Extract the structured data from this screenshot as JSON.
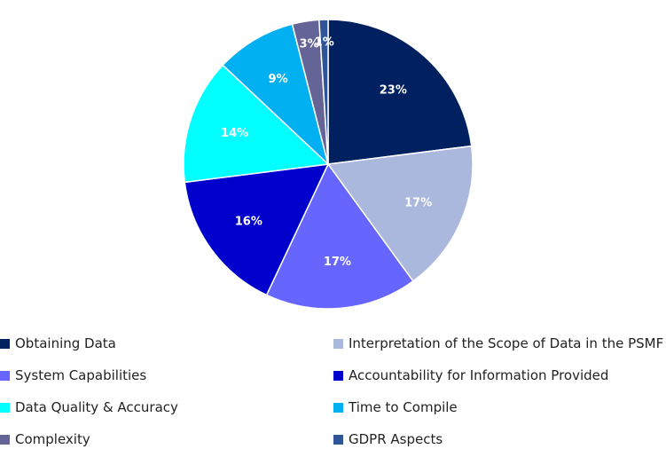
{
  "chart_data": {
    "type": "pie",
    "legend_position": "bottom",
    "slices": [
      {
        "label": "Obtaining Data",
        "value": 23,
        "value_label": "23%",
        "color": "#002060"
      },
      {
        "label": "Interpretation of the Scope of Data in the PSMF",
        "value": 17,
        "value_label": "17%",
        "color": "#A9B8DC"
      },
      {
        "label": "System Capabilities",
        "value": 17,
        "value_label": "17%",
        "color": "#6666FF"
      },
      {
        "label": "Accountability for Information Provided",
        "value": 16,
        "value_label": "16%",
        "color": "#0000CC"
      },
      {
        "label": "Data Quality & Accuracy",
        "value": 14,
        "value_label": "14%",
        "color": "#00FFFF"
      },
      {
        "label": "Time to Compile",
        "value": 9,
        "value_label": "9%",
        "color": "#00B0F0"
      },
      {
        "label": "Complexity",
        "value": 3,
        "value_label": "3%",
        "color": "#646496"
      },
      {
        "label": "GDPR Aspects",
        "value": 1,
        "value_label": "1%",
        "color": "#2F5597"
      }
    ]
  }
}
